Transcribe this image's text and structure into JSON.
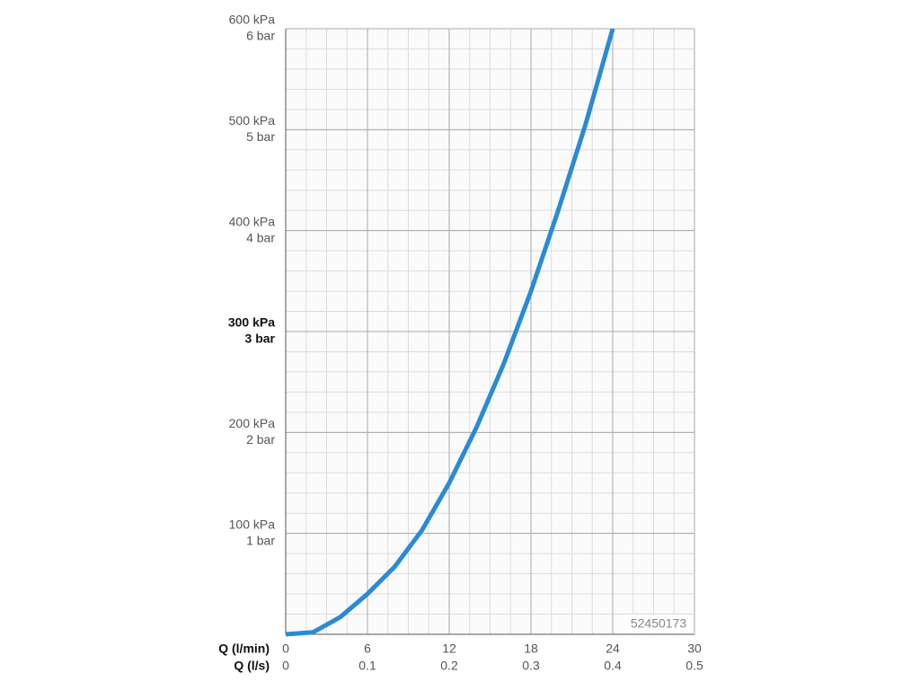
{
  "chart_data": {
    "type": "line",
    "x_label": "Q (l/min)",
    "x2_label": "Q (l/s)",
    "x": [
      0,
      2,
      4,
      6,
      8,
      10,
      12,
      14,
      16,
      18,
      20,
      22,
      24
    ],
    "series": [
      {
        "color": "#2a8bd3",
        "values": [
          0,
          2,
          17,
          40,
          67,
          103,
          150,
          205,
          268,
          340,
          420,
          505,
          600
        ]
      }
    ],
    "xlim": [
      0,
      30
    ],
    "xticks": [
      0,
      6,
      12,
      18,
      24,
      30
    ],
    "x2lim": [
      0,
      0.5
    ],
    "x2ticks": [
      0,
      0.1,
      0.2,
      0.3,
      0.4,
      0.5
    ],
    "ylim": [
      0,
      600
    ],
    "yticks": [
      {
        "value": 100,
        "label": "100 kPa"
      },
      {
        "value": 200,
        "label": "200 kPa"
      },
      {
        "value": 300,
        "label": "300 kPa"
      },
      {
        "value": 400,
        "label": "400 kPa"
      },
      {
        "value": 500,
        "label": "500 kPa"
      },
      {
        "value": 600,
        "label": "600 kPa"
      }
    ],
    "y2lim": [
      0,
      6
    ],
    "y2ticks": [
      {
        "value": 1,
        "label": "1 bar"
      },
      {
        "value": 2,
        "label": "2 bar"
      },
      {
        "value": 3,
        "label": "3 bar"
      },
      {
        "value": 4,
        "label": "4 bar"
      },
      {
        "value": 5,
        "label": "5 bar"
      },
      {
        "value": 6,
        "label": "6 bar"
      }
    ],
    "ytick_bold": 300,
    "grid": true,
    "annotation": "52450173"
  }
}
